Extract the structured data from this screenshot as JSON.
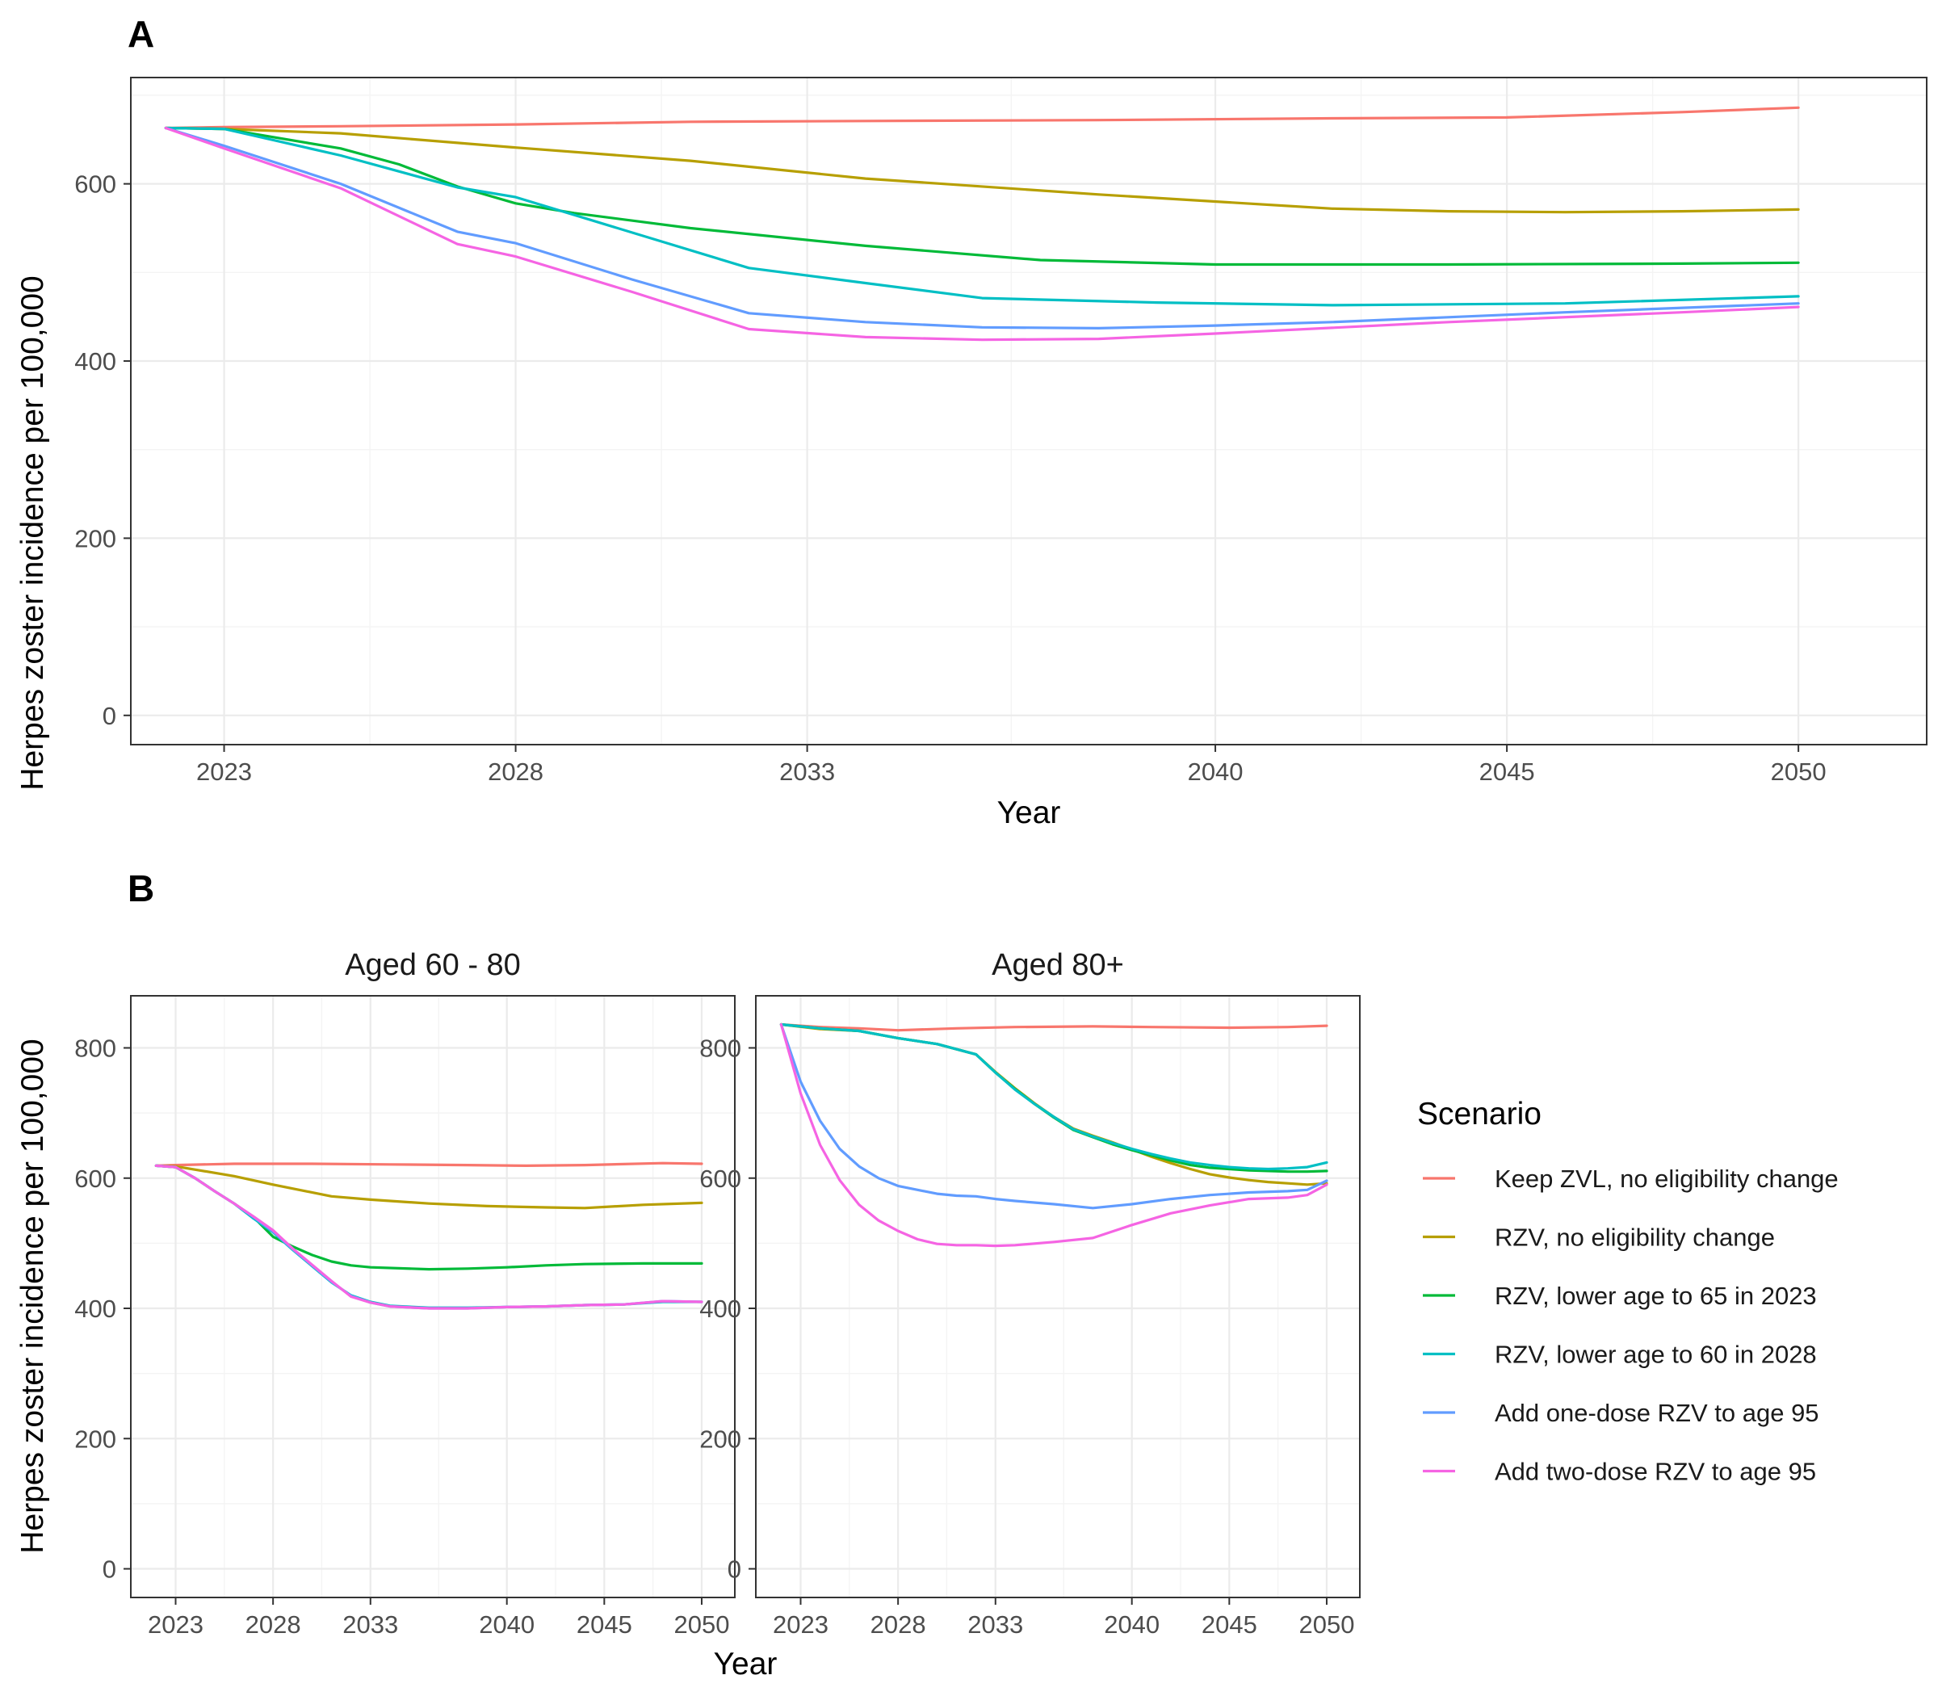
{
  "chart_data": [
    {
      "panel": "A",
      "type": "line",
      "facet_title": "",
      "xlabel": "Year",
      "ylabel": "Herpes zoster incidence per 100,000",
      "x_breaks": [
        2023,
        2028,
        2033,
        2040,
        2045,
        2050
      ],
      "x_labels": [
        "2023",
        "2028",
        "2033",
        "2040",
        "2045",
        "2050"
      ],
      "x_positions": [
        1,
        6,
        11,
        18,
        23,
        28
      ],
      "xlim": [
        -0.6,
        30.2
      ],
      "y_breaks": [
        0,
        200,
        400,
        600
      ],
      "y_labels": [
        "0",
        "200",
        "400",
        "600"
      ],
      "ylim": [
        -33,
        720
      ],
      "grid": true,
      "series": [
        {
          "key": "keep_zvl",
          "x": [
            0,
            1,
            3,
            6,
            9,
            12,
            16,
            20,
            23,
            26,
            28
          ],
          "y": [
            663,
            664,
            665,
            667,
            670,
            671,
            672,
            674,
            675,
            681,
            686
          ]
        },
        {
          "key": "rzv_no_change",
          "x": [
            0,
            1,
            3,
            6,
            9,
            12,
            16,
            20,
            22,
            24,
            26,
            28
          ],
          "y": [
            663,
            662,
            657,
            641,
            626,
            606,
            588,
            572,
            569,
            568,
            569,
            571
          ]
        },
        {
          "key": "rzv_65_2023",
          "x": [
            0,
            1,
            3,
            4,
            5,
            6,
            7,
            9,
            12,
            15,
            18,
            22,
            26,
            28
          ],
          "y": [
            663,
            662,
            640,
            622,
            597,
            578,
            567,
            550,
            530,
            514,
            509,
            509,
            510,
            511
          ]
        },
        {
          "key": "rzv_60_2028",
          "x": [
            0,
            1,
            3,
            5,
            6,
            8,
            10,
            12,
            14,
            17,
            20,
            24,
            28
          ],
          "y": [
            663,
            662,
            632,
            596,
            585,
            545,
            505,
            488,
            471,
            466,
            463,
            465,
            473
          ]
        },
        {
          "key": "one_dose_95",
          "x": [
            0,
            1,
            3,
            5,
            6,
            8,
            10,
            12,
            14,
            16,
            18,
            20,
            24,
            28
          ],
          "y": [
            663,
            643,
            600,
            546,
            533,
            492,
            454,
            444,
            438,
            437,
            440,
            444,
            455,
            465
          ]
        },
        {
          "key": "two_dose_95",
          "x": [
            0,
            1,
            3,
            5,
            6,
            8,
            10,
            12,
            14,
            16,
            18,
            22,
            26,
            28
          ],
          "y": [
            663,
            640,
            595,
            532,
            518,
            478,
            436,
            427,
            424,
            425,
            431,
            444,
            455,
            461
          ]
        }
      ]
    },
    {
      "panel": "B",
      "type": "line",
      "facet_title": "Aged 60 - 80",
      "xlabel": "Year",
      "ylabel": "Herpes zoster incidence per 100,000",
      "x_breaks": [
        2023,
        2028,
        2033,
        2040,
        2045,
        2050
      ],
      "x_labels": [
        "2023",
        "2028",
        "2033",
        "2040",
        "2045",
        "2050"
      ],
      "x_positions": [
        1,
        6,
        11,
        18,
        23,
        28
      ],
      "xlim": [
        -1.3,
        29.7
      ],
      "y_breaks": [
        0,
        200,
        400,
        600,
        800
      ],
      "y_labels": [
        "0",
        "200",
        "400",
        "600",
        "800"
      ],
      "ylim": [
        -44,
        880
      ],
      "grid": true,
      "series": [
        {
          "key": "keep_zvl",
          "x": [
            0,
            1,
            4,
            8,
            12,
            16,
            19,
            22,
            26,
            28
          ],
          "y": [
            619,
            620,
            622,
            622,
            621,
            620,
            619,
            620,
            623,
            622
          ]
        },
        {
          "key": "rzv_no_change",
          "x": [
            0,
            1,
            4,
            6,
            9,
            11,
            14,
            17,
            20,
            22,
            25,
            28
          ],
          "y": [
            619,
            618,
            603,
            590,
            572,
            567,
            561,
            557,
            555,
            554,
            559,
            562
          ]
        },
        {
          "key": "rzv_65_2023",
          "x": [
            0,
            1,
            2,
            3,
            4,
            5,
            6,
            7,
            8,
            9,
            10,
            11,
            14,
            16,
            18,
            20,
            22,
            25,
            28
          ],
          "y": [
            619,
            617,
            600,
            580,
            561,
            540,
            510,
            495,
            482,
            472,
            466,
            463,
            460,
            461,
            463,
            466,
            468,
            469,
            469
          ]
        },
        {
          "key": "rzv_60_2028",
          "x": [
            0,
            1,
            2,
            3,
            4,
            5,
            6,
            7,
            8,
            9,
            10,
            11,
            12,
            14,
            16,
            18,
            20,
            22,
            24,
            26,
            28
          ],
          "y": [
            619,
            617,
            600,
            580,
            561,
            538,
            517,
            490,
            465,
            440,
            420,
            410,
            404,
            401,
            401,
            402,
            403,
            405,
            406,
            410,
            410
          ]
        },
        {
          "key": "one_dose_95",
          "x": [
            0,
            1,
            2,
            3,
            4,
            5,
            6,
            7,
            8,
            9,
            10,
            11,
            12,
            14,
            16,
            18,
            20,
            22,
            24,
            26,
            28
          ],
          "y": [
            619,
            617,
            600,
            580,
            561,
            540,
            518,
            491,
            466,
            441,
            419,
            409,
            403,
            400,
            400,
            402,
            403,
            405,
            406,
            411,
            410
          ]
        },
        {
          "key": "two_dose_95",
          "x": [
            0,
            1,
            2,
            3,
            4,
            5,
            6,
            7,
            8,
            9,
            10,
            11,
            12,
            14,
            16,
            18,
            20,
            22,
            24,
            26,
            28
          ],
          "y": [
            619,
            617,
            600,
            580,
            561,
            541,
            520,
            492,
            467,
            442,
            418,
            409,
            403,
            400,
            400,
            402,
            403,
            405,
            406,
            411,
            410
          ]
        }
      ]
    },
    {
      "panel": "B",
      "type": "line",
      "facet_title": "Aged 80+",
      "xlabel": "Year",
      "ylabel": "",
      "x_breaks": [
        2023,
        2028,
        2033,
        2040,
        2045,
        2050
      ],
      "x_labels": [
        "2023",
        "2028",
        "2033",
        "2040",
        "2045",
        "2050"
      ],
      "x_positions": [
        1,
        6,
        11,
        18,
        23,
        28
      ],
      "xlim": [
        -1.3,
        29.7
      ],
      "y_breaks": [
        0,
        200,
        400,
        600,
        800
      ],
      "y_labels": [
        "0",
        "200",
        "400",
        "600",
        "800"
      ],
      "ylim": [
        -44,
        880
      ],
      "grid": true,
      "series": [
        {
          "key": "keep_zvl",
          "x": [
            0,
            2,
            4,
            6,
            9,
            12,
            16,
            19,
            23,
            26,
            28
          ],
          "y": [
            836,
            832,
            830,
            827,
            830,
            832,
            833,
            832,
            831,
            832,
            834
          ]
        },
        {
          "key": "rzv_no_change",
          "x": [
            0,
            2,
            4,
            6,
            8,
            10,
            11,
            12,
            13,
            14,
            15,
            16,
            17,
            18,
            19,
            20,
            21,
            22,
            23,
            24,
            25,
            26,
            27,
            28
          ],
          "y": [
            836,
            829,
            826,
            815,
            806,
            790,
            763,
            738,
            715,
            694,
            676,
            665,
            655,
            644,
            633,
            623,
            614,
            606,
            601,
            597,
            594,
            592,
            590,
            592
          ]
        },
        {
          "key": "rzv_65_2023",
          "x": [
            0,
            2,
            4,
            6,
            8,
            10,
            11,
            12,
            13,
            14,
            15,
            16,
            17,
            18,
            19,
            20,
            21,
            22,
            23,
            24,
            25,
            26,
            27,
            28
          ],
          "y": [
            836,
            830,
            826,
            815,
            806,
            790,
            762,
            737,
            714,
            693,
            674,
            663,
            652,
            643,
            635,
            627,
            620,
            616,
            614,
            612,
            611,
            610,
            610,
            611
          ]
        },
        {
          "key": "rzv_60_2028",
          "x": [
            0,
            2,
            4,
            6,
            8,
            10,
            11,
            12,
            13,
            14,
            15,
            16,
            17,
            18,
            19,
            20,
            21,
            22,
            23,
            24,
            25,
            26,
            27,
            28
          ],
          "y": [
            836,
            830,
            826,
            815,
            806,
            790,
            762,
            736,
            714,
            694,
            675,
            664,
            654,
            645,
            637,
            630,
            624,
            620,
            617,
            615,
            614,
            615,
            617,
            624
          ]
        },
        {
          "key": "one_dose_95",
          "x": [
            0,
            1,
            2,
            3,
            4,
            5,
            6,
            7,
            8,
            9,
            10,
            11,
            12,
            14,
            16,
            18,
            20,
            22,
            24,
            26,
            27,
            28
          ],
          "y": [
            836,
            748,
            688,
            645,
            618,
            600,
            588,
            582,
            576,
            573,
            572,
            568,
            565,
            560,
            554,
            560,
            568,
            574,
            578,
            580,
            582,
            596
          ]
        },
        {
          "key": "two_dose_95",
          "x": [
            0,
            1,
            2,
            3,
            4,
            5,
            6,
            7,
            8,
            9,
            10,
            11,
            12,
            14,
            16,
            18,
            20,
            22,
            24,
            26,
            27,
            28
          ],
          "y": [
            836,
            730,
            651,
            597,
            559,
            535,
            519,
            506,
            499,
            497,
            497,
            496,
            497,
            502,
            508,
            528,
            546,
            558,
            568,
            570,
            574,
            590
          ]
        }
      ]
    }
  ],
  "panel_letters": {
    "a": "A",
    "b": "B"
  },
  "legend": {
    "title": "Scenario",
    "items": [
      {
        "key": "keep_zvl",
        "label": "Keep ZVL, no eligibility change",
        "color": "#F8766D"
      },
      {
        "key": "rzv_no_change",
        "label": "RZV, no eligibility change",
        "color": "#B79F00"
      },
      {
        "key": "rzv_65_2023",
        "label": "RZV, lower age to 65 in 2023",
        "color": "#00BA38"
      },
      {
        "key": "rzv_60_2028",
        "label": "RZV, lower age to 60 in 2028",
        "color": "#00BFC4"
      },
      {
        "key": "one_dose_95",
        "label": "Add one-dose RZV to age 95",
        "color": "#619CFF"
      },
      {
        "key": "two_dose_95",
        "label": "Add two-dose RZV to age 95",
        "color": "#F564E3"
      }
    ]
  }
}
